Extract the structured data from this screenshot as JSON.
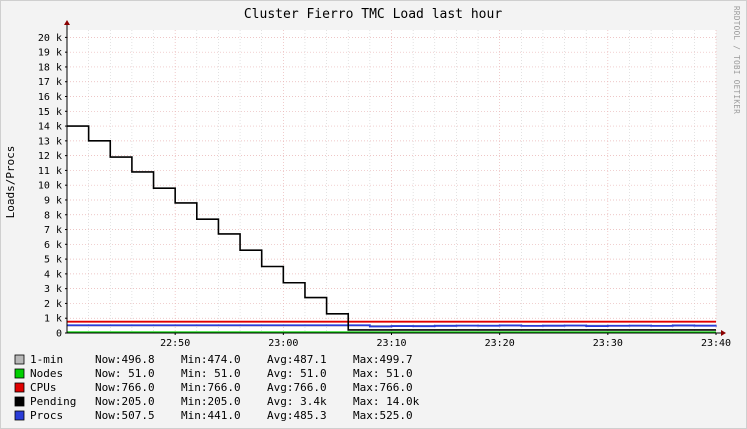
{
  "chart_data": {
    "type": "line",
    "title": "Cluster Fierro TMC Load last hour",
    "ylabel": "Loads/Procs",
    "watermark": "RRDTOOL / TOBI OETIKER",
    "ylim": [
      0,
      20500
    ],
    "yticks": [
      {
        "value": 0,
        "label": "0"
      },
      {
        "value": 1000,
        "label": "1 k"
      },
      {
        "value": 2000,
        "label": "2 k"
      },
      {
        "value": 3000,
        "label": "3 k"
      },
      {
        "value": 4000,
        "label": "4 k"
      },
      {
        "value": 5000,
        "label": "5 k"
      },
      {
        "value": 6000,
        "label": "6 k"
      },
      {
        "value": 7000,
        "label": "7 k"
      },
      {
        "value": 8000,
        "label": "8 k"
      },
      {
        "value": 9000,
        "label": "9 k"
      },
      {
        "value": 10000,
        "label": "10 k"
      },
      {
        "value": 11000,
        "label": "11 k"
      },
      {
        "value": 12000,
        "label": "12 k"
      },
      {
        "value": 13000,
        "label": "13 k"
      },
      {
        "value": 14000,
        "label": "14 k"
      },
      {
        "value": 15000,
        "label": "15 k"
      },
      {
        "value": 16000,
        "label": "16 k"
      },
      {
        "value": 17000,
        "label": "17 k"
      },
      {
        "value": 18000,
        "label": "18 k"
      },
      {
        "value": 19000,
        "label": "19 k"
      },
      {
        "value": 20000,
        "label": "20 k"
      }
    ],
    "xlim": [
      "22:40",
      "23:40"
    ],
    "xticks": [
      "22:50",
      "23:00",
      "23:10",
      "23:20",
      "23:30",
      "23:40"
    ],
    "x": [
      "22:40",
      "22:42",
      "22:44",
      "22:46",
      "22:48",
      "22:50",
      "22:52",
      "22:54",
      "22:56",
      "22:58",
      "23:00",
      "23:02",
      "23:04",
      "23:06",
      "23:08",
      "23:10",
      "23:12",
      "23:14",
      "23:16",
      "23:18",
      "23:20",
      "23:22",
      "23:24",
      "23:26",
      "23:28",
      "23:30",
      "23:32",
      "23:34",
      "23:36",
      "23:38",
      "23:40"
    ],
    "series": [
      {
        "name": "1-min",
        "color": "#b8b8b8",
        "values": [
          497,
          497,
          497,
          497,
          497,
          497,
          497,
          497,
          497,
          497,
          497,
          497,
          497,
          497,
          480,
          474,
          480,
          487,
          490,
          495,
          499,
          490,
          485,
          490,
          495,
          480,
          487,
          490,
          495,
          499,
          497
        ]
      },
      {
        "name": "Nodes",
        "color": "#00d000",
        "values": [
          51,
          51,
          51,
          51,
          51,
          51,
          51,
          51,
          51,
          51,
          51,
          51,
          51,
          51,
          51,
          51,
          51,
          51,
          51,
          51,
          51,
          51,
          51,
          51,
          51,
          51,
          51,
          51,
          51,
          51,
          51
        ]
      },
      {
        "name": "CPUs",
        "color": "#e00000",
        "values": [
          766,
          766,
          766,
          766,
          766,
          766,
          766,
          766,
          766,
          766,
          766,
          766,
          766,
          766,
          766,
          766,
          766,
          766,
          766,
          766,
          766,
          766,
          766,
          766,
          766,
          766,
          766,
          766,
          766,
          766,
          766
        ]
      },
      {
        "name": "Pending",
        "color": "#000000",
        "values": [
          14000,
          13000,
          11900,
          10900,
          9800,
          8800,
          7700,
          6700,
          5600,
          4500,
          3400,
          2400,
          1300,
          205,
          205,
          205,
          205,
          205,
          205,
          205,
          205,
          205,
          205,
          205,
          205,
          205,
          205,
          205,
          205,
          205,
          205
        ]
      },
      {
        "name": "Procs",
        "color": "#2a3cd8",
        "values": [
          525,
          525,
          525,
          525,
          525,
          525,
          525,
          525,
          525,
          525,
          525,
          525,
          525,
          525,
          441,
          470,
          460,
          485,
          500,
          490,
          510,
          480,
          495,
          505,
          470,
          490,
          500,
          480,
          510,
          495,
          507
        ]
      }
    ],
    "legend": [
      {
        "name": "1-min",
        "color": "#b8b8b8",
        "now": "Now:496.8",
        "min": "Min:474.0",
        "avg": "Avg:487.1",
        "max": "Max:499.7"
      },
      {
        "name": "Nodes",
        "color": "#00d000",
        "now": "Now: 51.0",
        "min": "Min: 51.0",
        "avg": "Avg: 51.0",
        "max": "Max: 51.0"
      },
      {
        "name": "CPUs",
        "color": "#e00000",
        "now": "Now:766.0",
        "min": "Min:766.0",
        "avg": "Avg:766.0",
        "max": "Max:766.0"
      },
      {
        "name": "Pending",
        "color": "#000000",
        "now": "Now:205.0",
        "min": "Min:205.0",
        "avg": "Avg:  3.4k",
        "max": "Max: 14.0k"
      },
      {
        "name": "Procs",
        "color": "#2a3cd8",
        "now": "Now:507.5",
        "min": "Min:441.0",
        "avg": "Avg:485.3",
        "max": "Max:525.0"
      }
    ],
    "legend_placement": "bottom",
    "grid": true
  }
}
